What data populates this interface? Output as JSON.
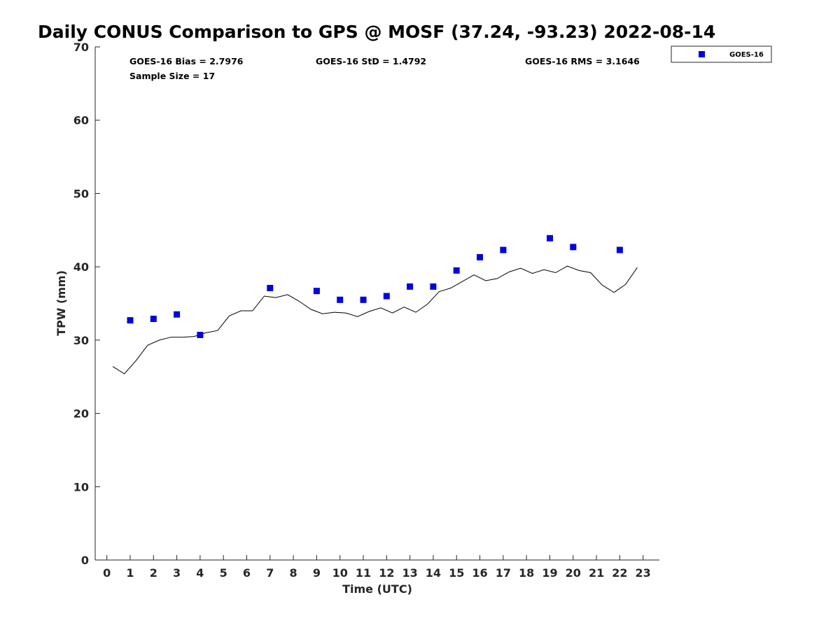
{
  "chart_data": {
    "type": "scatter",
    "title": "Daily CONUS Comparison to GPS @ MOSF (37.24, -93.23) 2022-08-14",
    "xlabel": "Time (UTC)",
    "ylabel": "TPW (mm)",
    "xlim": [
      -0.5,
      23.7
    ],
    "ylim": [
      0,
      70
    ],
    "xticks": [
      0,
      1,
      2,
      3,
      4,
      5,
      6,
      7,
      8,
      9,
      10,
      11,
      12,
      13,
      14,
      15,
      16,
      17,
      18,
      19,
      20,
      21,
      22,
      23
    ],
    "yticks": [
      0,
      10,
      20,
      30,
      40,
      50,
      60,
      70
    ],
    "grid": false,
    "legend_position": "top-right, outside plot area",
    "stats": {
      "bias": "GOES-16 Bias = 2.7976",
      "std": "GOES-16 StD = 1.4792",
      "rms": "GOES-16 RMS = 3.1646",
      "sample_size": "Sample Size = 17"
    },
    "series": [
      {
        "name": "GOES-16",
        "kind": "scatter",
        "marker": "square",
        "color": "#0000e0",
        "points": [
          [
            1,
            32.7
          ],
          [
            2,
            32.9
          ],
          [
            3,
            33.5
          ],
          [
            4,
            30.7
          ],
          [
            7,
            37.1
          ],
          [
            9,
            36.7
          ],
          [
            10,
            35.5
          ],
          [
            11,
            35.5
          ],
          [
            12,
            36.0
          ],
          [
            13,
            37.3
          ],
          [
            14,
            37.3
          ],
          [
            15,
            39.5
          ],
          [
            16,
            41.3
          ],
          [
            17,
            42.3
          ],
          [
            19,
            43.9
          ],
          [
            20,
            42.7
          ],
          [
            22,
            42.3
          ]
        ]
      },
      {
        "kind": "line",
        "color": "#000000",
        "points": [
          [
            0.25,
            26.4
          ],
          [
            0.75,
            25.4
          ],
          [
            1.25,
            27.2
          ],
          [
            1.75,
            29.3
          ],
          [
            2.25,
            30.0
          ],
          [
            2.75,
            30.4
          ],
          [
            3.25,
            30.4
          ],
          [
            3.75,
            30.5
          ],
          [
            4.25,
            31.0
          ],
          [
            4.75,
            31.3
          ],
          [
            5.25,
            33.3
          ],
          [
            5.75,
            34.0
          ],
          [
            6.25,
            34.0
          ],
          [
            6.75,
            36.0
          ],
          [
            7.25,
            35.8
          ],
          [
            7.75,
            36.2
          ],
          [
            8.25,
            35.3
          ],
          [
            8.75,
            34.2
          ],
          [
            9.25,
            33.6
          ],
          [
            9.75,
            33.8
          ],
          [
            10.25,
            33.7
          ],
          [
            10.75,
            33.2
          ],
          [
            11.25,
            33.9
          ],
          [
            11.75,
            34.4
          ],
          [
            12.25,
            33.7
          ],
          [
            12.75,
            34.5
          ],
          [
            13.25,
            33.8
          ],
          [
            13.75,
            34.9
          ],
          [
            14.25,
            36.6
          ],
          [
            14.75,
            37.1
          ],
          [
            15.25,
            38.0
          ],
          [
            15.75,
            38.9
          ],
          [
            16.25,
            38.1
          ],
          [
            16.75,
            38.4
          ],
          [
            17.25,
            39.3
          ],
          [
            17.75,
            39.8
          ],
          [
            18.25,
            39.1
          ],
          [
            18.75,
            39.6
          ],
          [
            19.25,
            39.2
          ],
          [
            19.75,
            40.1
          ],
          [
            20.25,
            39.5
          ],
          [
            20.75,
            39.2
          ],
          [
            21.25,
            37.5
          ],
          [
            21.75,
            36.5
          ],
          [
            22.25,
            37.6
          ],
          [
            22.75,
            39.9
          ]
        ]
      }
    ]
  }
}
